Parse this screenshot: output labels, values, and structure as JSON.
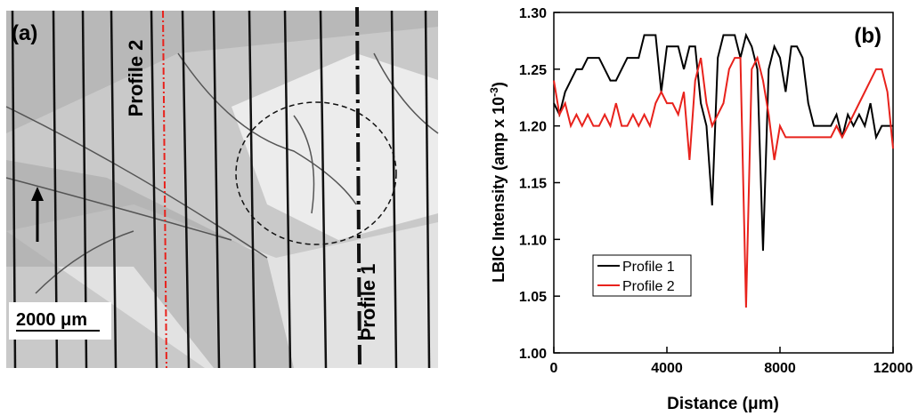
{
  "image_panel": {
    "label": "(a)",
    "profile_labels": [
      "Profile 2",
      "Profile 1"
    ],
    "scale_bar": "2000 μm"
  },
  "chart_data": {
    "type": "line",
    "panel_label": "(b)",
    "xlabel": "Distance (μm)",
    "ylabel": [
      "LBIC Intensity (amp x 10",
      "-3",
      ")"
    ],
    "x": [
      0,
      200,
      400,
      600,
      800,
      1000,
      1200,
      1400,
      1600,
      1800,
      2000,
      2200,
      2400,
      2600,
      2800,
      3000,
      3200,
      3400,
      3600,
      3800,
      4000,
      4200,
      4400,
      4600,
      4800,
      5000,
      5200,
      5400,
      5600,
      5800,
      6000,
      6200,
      6400,
      6600,
      6800,
      7000,
      7200,
      7400,
      7600,
      7800,
      8000,
      8200,
      8400,
      8600,
      8800,
      9000,
      9200,
      9400,
      9600,
      9800,
      10000,
      10200,
      10400,
      10600,
      10800,
      11000,
      11200,
      11400,
      11600,
      11800,
      12000
    ],
    "series": [
      {
        "name": "Profile 1",
        "color": "#000000",
        "values": [
          1.22,
          1.21,
          1.23,
          1.24,
          1.25,
          1.25,
          1.26,
          1.26,
          1.26,
          1.25,
          1.24,
          1.24,
          1.25,
          1.26,
          1.26,
          1.26,
          1.28,
          1.28,
          1.28,
          1.23,
          1.27,
          1.27,
          1.27,
          1.25,
          1.27,
          1.27,
          1.22,
          1.2,
          1.13,
          1.26,
          1.28,
          1.28,
          1.28,
          1.26,
          1.28,
          1.27,
          1.25,
          1.09,
          1.25,
          1.27,
          1.26,
          1.23,
          1.27,
          1.27,
          1.26,
          1.22,
          1.2,
          1.2,
          1.2,
          1.2,
          1.21,
          1.19,
          1.21,
          1.2,
          1.21,
          1.2,
          1.22,
          1.19,
          1.2,
          1.2,
          1.2
        ]
      },
      {
        "name": "Profile 2",
        "color": "#e8221c",
        "values": [
          1.24,
          1.21,
          1.22,
          1.2,
          1.21,
          1.2,
          1.21,
          1.2,
          1.2,
          1.21,
          1.2,
          1.22,
          1.2,
          1.2,
          1.21,
          1.2,
          1.21,
          1.2,
          1.22,
          1.23,
          1.22,
          1.22,
          1.21,
          1.23,
          1.17,
          1.24,
          1.26,
          1.22,
          1.2,
          1.21,
          1.22,
          1.25,
          1.26,
          1.26,
          1.04,
          1.25,
          1.26,
          1.24,
          1.21,
          1.17,
          1.2,
          1.19,
          1.19,
          1.19,
          1.19,
          1.19,
          1.19,
          1.19,
          1.19,
          1.19,
          1.2,
          1.19,
          1.2,
          1.21,
          1.22,
          1.23,
          1.24,
          1.25,
          1.25,
          1.23,
          1.18
        ]
      }
    ],
    "xlim": [
      0,
      12000
    ],
    "xticks": [
      0,
      4000,
      8000,
      12000
    ],
    "ylim": [
      1.0,
      1.3
    ],
    "yticks": [
      {
        "value": 1.0,
        "label": "1.00"
      },
      {
        "value": 1.05,
        "label": "1.05"
      },
      {
        "value": 1.1,
        "label": "1.10"
      },
      {
        "value": 1.15,
        "label": "1.15"
      },
      {
        "value": 1.2,
        "label": "1.20"
      },
      {
        "value": 1.25,
        "label": "1.25"
      },
      {
        "value": 1.3,
        "label": "1.30"
      }
    ],
    "legend": "lower-left"
  }
}
